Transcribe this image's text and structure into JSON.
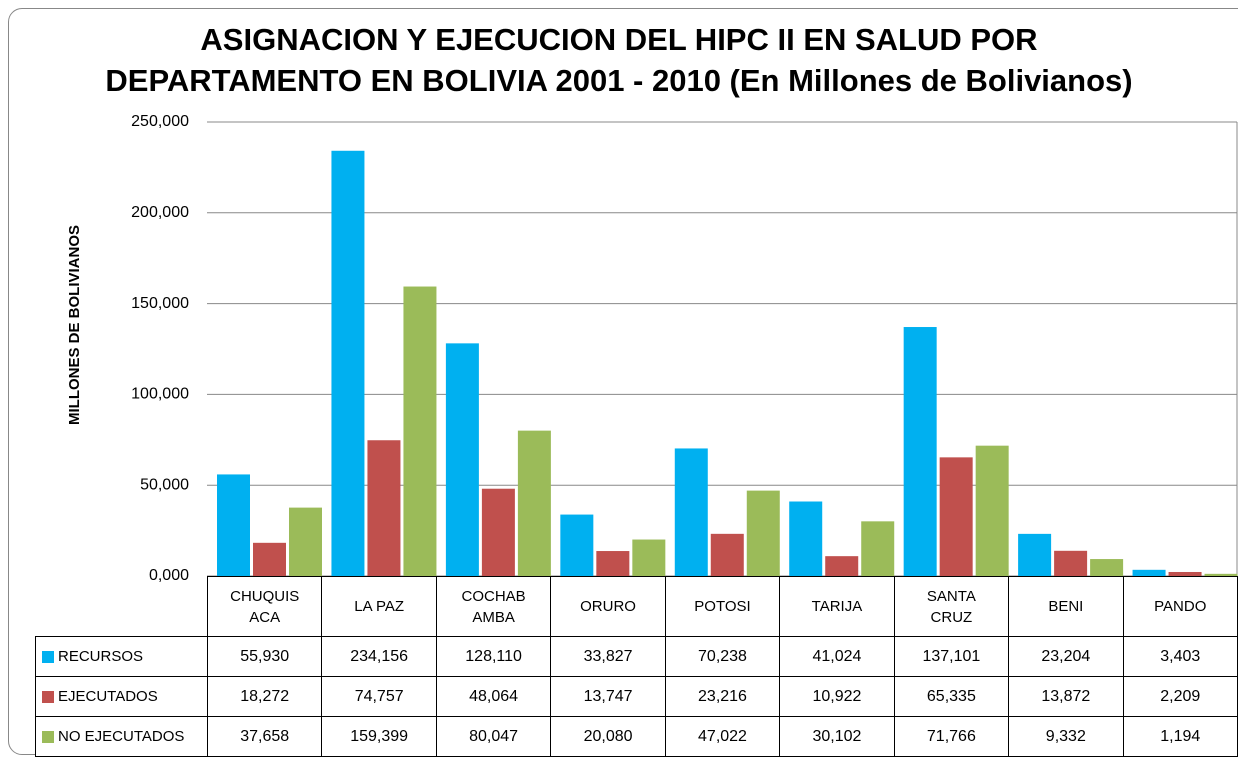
{
  "chart_data": {
    "type": "bar",
    "title": [
      "ASIGNACION Y EJECUCION DEL HIPC II EN SALUD POR",
      "DEPARTAMENTO EN BOLIVIA  2001 - 2010 (En Millones de Bolivianos)"
    ],
    "y_label": "MILLONES DE BOLIVIANOS",
    "categories": [
      "CHUQUISACA",
      "LA PAZ",
      "COCHABAMBA",
      "ORURO",
      "POTOSI",
      "TARIJA",
      "SANTA CRUZ",
      "BENI",
      "PANDO"
    ],
    "series": [
      {
        "name": "RECURSOS",
        "color": "#00b0f0",
        "values": [
          55.93,
          234.156,
          128.11,
          33.827,
          70.238,
          41.024,
          137.101,
          23.204,
          3.403
        ],
        "value_labels": [
          "55,930",
          "234,156",
          "128,110",
          "33,827",
          "70,238",
          "41,024",
          "137,101",
          "23,204",
          "3,403"
        ]
      },
      {
        "name": "EJECUTADOS",
        "color": "#c0504d",
        "values": [
          18.272,
          74.757,
          48.064,
          13.747,
          23.216,
          10.922,
          65.335,
          13.872,
          2.209
        ],
        "value_labels": [
          "18,272",
          "74,757",
          "48,064",
          "13,747",
          "23,216",
          "10,922",
          "65,335",
          "13,872",
          "2,209"
        ]
      },
      {
        "name": "NO EJECUTADOS",
        "color": "#9bbb59",
        "values": [
          37.658,
          159.399,
          80.047,
          20.08,
          47.022,
          30.102,
          71.766,
          9.332,
          1.194
        ],
        "value_labels": [
          "37,658",
          "159,399",
          "80,047",
          "20,080",
          "47,022",
          "30,102",
          "71,766",
          "9,332",
          "1,194"
        ]
      }
    ],
    "ylim": [
      0,
      250
    ],
    "yticks": [
      {
        "value": 0,
        "label": "0,000"
      },
      {
        "value": 50,
        "label": "50,000"
      },
      {
        "value": 100,
        "label": "100,000"
      },
      {
        "value": 150,
        "label": "150,000"
      },
      {
        "value": 200,
        "label": "200,000"
      },
      {
        "value": 250,
        "label": "250,000"
      }
    ],
    "grid": true
  }
}
